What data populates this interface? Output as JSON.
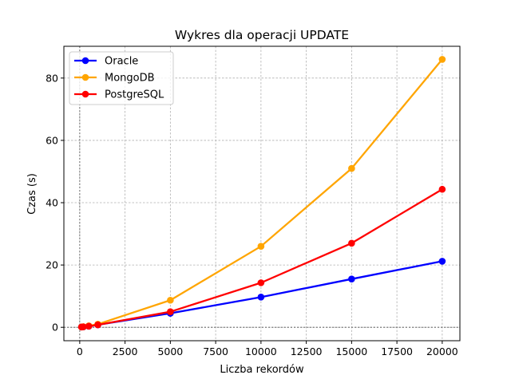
{
  "chart_data": {
    "type": "line",
    "title": "Wykres dla operacji UPDATE",
    "xlabel": "Liczba rekordów",
    "ylabel": "Czas (s)",
    "xlim": [
      -875,
      20975
    ],
    "ylim": [
      -4.3,
      90.2
    ],
    "xticks": [
      0,
      2500,
      5000,
      7500,
      10000,
      12500,
      15000,
      17500,
      20000
    ],
    "yticks": [
      0,
      20,
      40,
      60,
      80
    ],
    "grid": true,
    "legend_position": "top-left",
    "series": [
      {
        "name": "Oracle",
        "color": "#0000ff",
        "x": [
          100,
          200,
          500,
          1000,
          5000,
          10000,
          15000,
          20000
        ],
        "y": [
          0.1,
          0.15,
          0.35,
          0.8,
          4.5,
          9.7,
          15.5,
          21.2
        ]
      },
      {
        "name": "MongoDB",
        "color": "#ffa500",
        "x": [
          100,
          200,
          500,
          1000,
          5000,
          10000,
          15000,
          20000
        ],
        "y": [
          0.1,
          0.2,
          0.5,
          1.0,
          8.7,
          26.0,
          51.0,
          86.0
        ]
      },
      {
        "name": "PostgreSQL",
        "color": "#ff0000",
        "x": [
          100,
          200,
          500,
          1000,
          5000,
          10000,
          15000,
          20000
        ],
        "y": [
          0.1,
          0.15,
          0.35,
          0.8,
          5.0,
          14.3,
          27.0,
          44.3
        ]
      }
    ]
  }
}
